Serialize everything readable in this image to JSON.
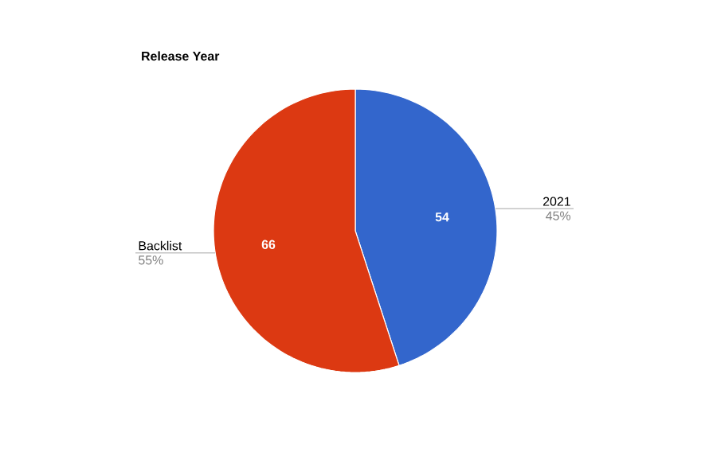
{
  "chart_data": {
    "type": "pie",
    "title": "Release Year",
    "categories": [
      "2021",
      "Backlist"
    ],
    "values": [
      54,
      66
    ],
    "colors": [
      "#3366cc",
      "#dc3912"
    ],
    "value_labels": [
      "54",
      "66"
    ],
    "annotations": [
      "45%",
      "55%"
    ]
  }
}
